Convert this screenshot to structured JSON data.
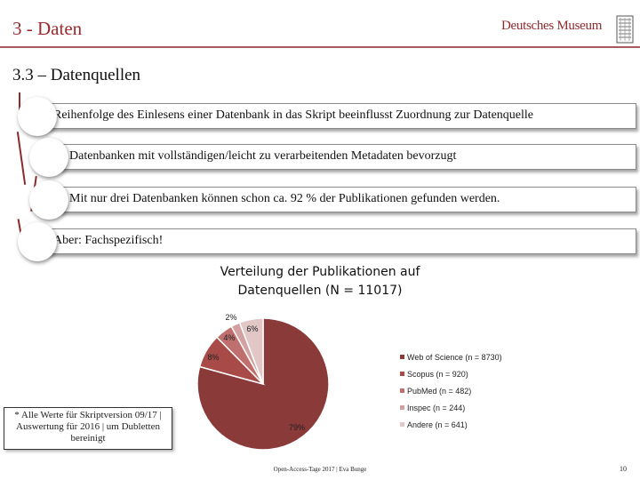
{
  "slide": {
    "title": "3 - Daten",
    "logo_text": "Deutsches Museum",
    "section_heading": "3.3 – Datenquellen"
  },
  "bullets": [
    "Reihenfolge des Einlesens einer Datenbank in das Skript beeinflusst Zuordnung zur Datenquelle",
    "Datenbanken mit vollständigen/leicht zu verarbeitenden Metadaten bevorzugt",
    "Mit nur drei Datenbanken können schon ca. 92 % der Publikationen gefunden werden.",
    "Aber: Fachspezifisch!"
  ],
  "footnote": "* Alle Werte für Skriptversion 09/17 | Auswertung für 2016 | um Dubletten bereinigt",
  "footer": "Open-Access-Tage 2017 | Eva Bunge",
  "page_number": "10",
  "colors": {
    "accent": "#9b2a2e",
    "slices": [
      "#8b3a3a",
      "#a84a48",
      "#bf6f6d",
      "#d2a1a0",
      "#e2c7c7"
    ]
  },
  "chart_data": {
    "type": "pie",
    "title": "Verteilung der Publikationen auf Datenquellen (N = 11017)",
    "labels": [
      "Web of Science (n = 8730)",
      "Scopus (n = 920)",
      "PubMed (n = 482)",
      "Inspec (n = 244)",
      "Andere (n = 641)"
    ],
    "counts": [
      8730,
      920,
      482,
      244,
      641
    ],
    "slice_labels": [
      "79%",
      "8%",
      "4%",
      "2%",
      "6%"
    ],
    "legend_position": "right"
  }
}
